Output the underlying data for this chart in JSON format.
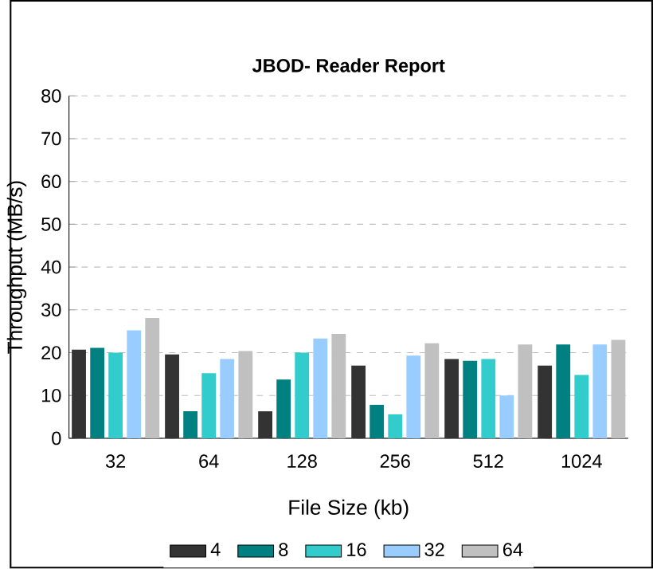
{
  "chart_data": {
    "type": "bar",
    "title": "JBOD- Reader Report",
    "xlabel": "File Size (kb)",
    "ylabel": "Throughput (MB/s)",
    "categories": [
      "32",
      "64",
      "128",
      "256",
      "512",
      "1024"
    ],
    "series": [
      {
        "name": "4",
        "color": "#333333",
        "values": [
          20.7,
          19.6,
          6.3,
          17,
          18.5,
          17
        ]
      },
      {
        "name": "8",
        "color": "#008080",
        "values": [
          21.1,
          6.3,
          13.7,
          7.8,
          18.1,
          21.9
        ]
      },
      {
        "name": "16",
        "color": "#33cccc",
        "values": [
          20,
          15.2,
          20,
          5.6,
          18.5,
          14.8
        ]
      },
      {
        "name": "32",
        "color": "#99ccff",
        "values": [
          25.2,
          18.5,
          23.3,
          19.3,
          10,
          21.9
        ]
      },
      {
        "name": "64",
        "color": "#c0c0c0",
        "values": [
          28.1,
          20.4,
          24.4,
          22.2,
          21.9,
          23
        ]
      }
    ],
    "ylim": [
      0,
      80
    ],
    "yticks": [
      0,
      10,
      20,
      30,
      40,
      50,
      60,
      70,
      80
    ],
    "grid": "y",
    "legend": "bottom"
  }
}
